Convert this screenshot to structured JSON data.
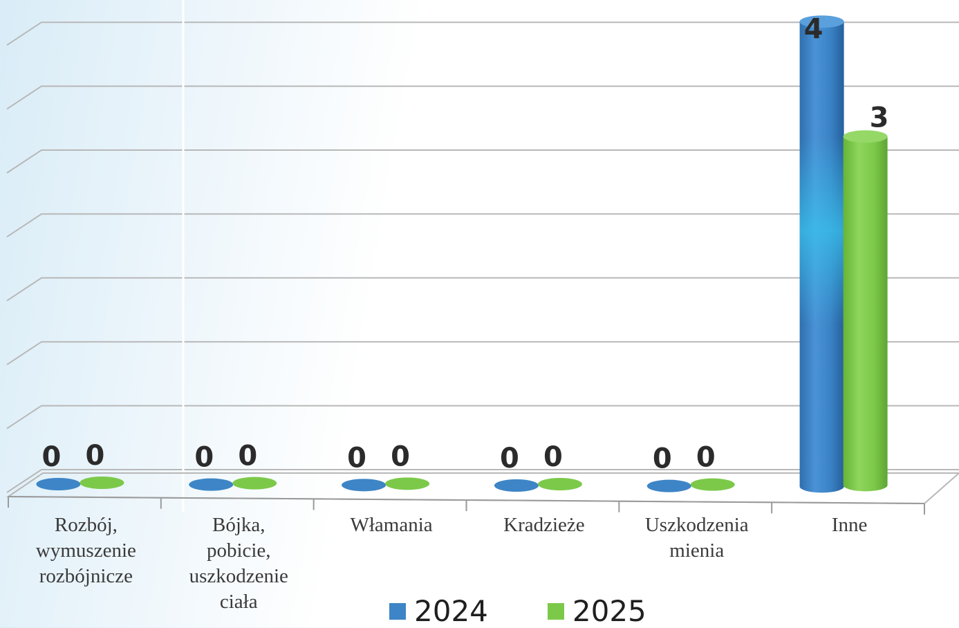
{
  "chart_data": {
    "type": "bar",
    "categories": [
      "Rozbój,\nwymuszenie\nrozbójnicze",
      "Bójka,\npobicie,\nuszkodzenie\nciała",
      "Włamania",
      "Kradzieże",
      "Uszkodzenia\nmienia",
      "Inne"
    ],
    "series": [
      {
        "name": "2024",
        "values": [
          0,
          0,
          0,
          0,
          0,
          4
        ],
        "labels": [
          "0",
          "0",
          "0",
          "0",
          "0",
          "4"
        ],
        "color": "#3d85c6"
      },
      {
        "name": "2025",
        "values": [
          0,
          0,
          0,
          0,
          0,
          3
        ],
        "labels": [
          "0",
          "0",
          "0",
          "0",
          "0",
          "3"
        ],
        "color": "#7cc94a"
      }
    ],
    "title": "",
    "xlabel": "",
    "ylabel": "",
    "ylim": [
      0,
      4.4
    ],
    "grid": true,
    "legend": "bottom",
    "bar_shape": "cylinder-3d"
  }
}
